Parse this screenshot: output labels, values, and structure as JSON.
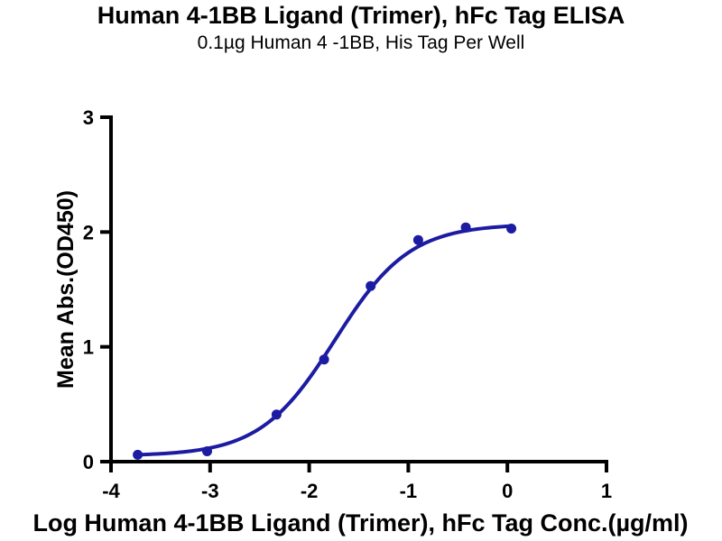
{
  "header": {
    "title": "Human 4-1BB Ligand (Trimer), hFc Tag ELISA",
    "subtitle": "0.1µg Human 4 -1BB, His Tag Per Well"
  },
  "chart_data": {
    "type": "scatter",
    "title": "Human 4-1BB Ligand (Trimer), hFc Tag ELISA",
    "subtitle": "0.1µg Human 4 -1BB, His Tag Per Well",
    "xlabel": "Log Human 4-1BB Ligand (Trimer), hFc Tag Conc.(µg/ml)",
    "ylabel": "Mean Abs.(OD450)",
    "xlim": [
      -4,
      1
    ],
    "ylim": [
      0,
      3
    ],
    "x_ticks": [
      "-4",
      "-3",
      "-2",
      "-1",
      "0",
      "1"
    ],
    "x_tick_values": [
      -4,
      -3,
      -2,
      -1,
      0,
      1
    ],
    "y_ticks": [
      "0",
      "1",
      "2",
      "3"
    ],
    "y_tick_values": [
      0,
      1,
      2,
      3
    ],
    "grid": false,
    "legend": "none",
    "points": [
      {
        "x": -3.73,
        "y": 0.06
      },
      {
        "x": -3.03,
        "y": 0.09
      },
      {
        "x": -2.33,
        "y": 0.41
      },
      {
        "x": -1.85,
        "y": 0.89
      },
      {
        "x": -1.38,
        "y": 1.53
      },
      {
        "x": -0.9,
        "y": 1.93
      },
      {
        "x": -0.42,
        "y": 2.04
      },
      {
        "x": 0.04,
        "y": 2.03
      }
    ],
    "fit_curve": {
      "model": "4PL",
      "bottom": 0.05,
      "top": 2.07,
      "log_ec50": -1.74,
      "hill": 1.15,
      "x_start": -3.73,
      "x_end": 0.04
    },
    "colors": {
      "series": "#1c1ca3",
      "axis": "#000000",
      "background": "#ffffff"
    }
  }
}
